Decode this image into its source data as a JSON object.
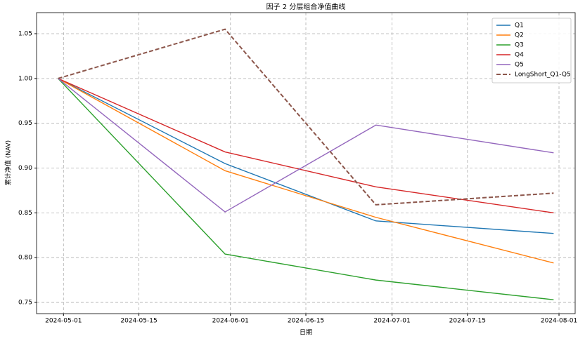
{
  "chart_data": {
    "type": "line",
    "title": "因子 2 分层组合净值曲线",
    "xlabel": "日期",
    "ylabel": "累计净值 (NAV)",
    "x": [
      "2024-04-30",
      "2024-05-31",
      "2024-06-28",
      "2024-07-31"
    ],
    "series": [
      {
        "name": "Q1",
        "color": "#1f77b4",
        "dashed": false,
        "values": [
          1.0,
          0.905,
          0.841,
          0.827
        ]
      },
      {
        "name": "Q2",
        "color": "#ff7f0e",
        "dashed": false,
        "values": [
          1.0,
          0.897,
          0.845,
          0.794
        ]
      },
      {
        "name": "Q3",
        "color": "#2ca02c",
        "dashed": false,
        "values": [
          1.0,
          0.804,
          0.775,
          0.753
        ]
      },
      {
        "name": "Q4",
        "color": "#d62728",
        "dashed": false,
        "values": [
          1.0,
          0.918,
          0.879,
          0.85
        ]
      },
      {
        "name": "Q5",
        "color": "#9467bd",
        "dashed": false,
        "values": [
          1.0,
          0.851,
          0.948,
          0.917
        ]
      },
      {
        "name": "LongShort_Q1-Q5",
        "color": "#8c564b",
        "dashed": true,
        "values": [
          1.0,
          1.055,
          0.859,
          0.872
        ]
      }
    ],
    "xlim": [
      "2024-04-26",
      "2024-08-04"
    ],
    "xticks": [
      "2024-05-01",
      "2024-05-15",
      "2024-06-01",
      "2024-06-15",
      "2024-07-01",
      "2024-07-15",
      "2024-08-01"
    ],
    "ylim": [
      0.7375,
      1.0735
    ],
    "yticks": [
      {
        "value": 0.75,
        "label": "0.75"
      },
      {
        "value": 0.8,
        "label": "0.80"
      },
      {
        "value": 0.85,
        "label": "0.85"
      },
      {
        "value": 0.9,
        "label": "0.90"
      },
      {
        "value": 0.95,
        "label": "0.95"
      },
      {
        "value": 1.0,
        "label": "1.00"
      },
      {
        "value": 1.05,
        "label": "1.05"
      }
    ],
    "grid": true,
    "legend": "upper right"
  }
}
